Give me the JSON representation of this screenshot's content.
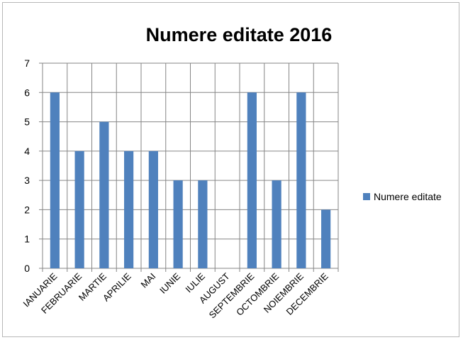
{
  "chart_data": {
    "type": "bar",
    "title": "Numere editate 2016",
    "xlabel": "",
    "ylabel": "",
    "categories": [
      "IANUARIE",
      "FEBRUARIE",
      "MARTIE",
      "APRILIE",
      "MAI",
      "IUNIE",
      "IULIE",
      "AUGUST",
      "SEPTEMBRIE",
      "OCTOMBRIE",
      "NOIEMBRIE",
      "DECEMBRIE"
    ],
    "series": [
      {
        "name": "Numere editate",
        "values": [
          6,
          4,
          5,
          4,
          4,
          3,
          3,
          0,
          6,
          3,
          6,
          2
        ],
        "color": "#4f81bd"
      }
    ],
    "ylim": [
      0,
      7
    ],
    "yticks": [
      "0",
      "1",
      "2",
      "3",
      "4",
      "5",
      "6",
      "7"
    ],
    "grid": true,
    "legend": "right"
  }
}
